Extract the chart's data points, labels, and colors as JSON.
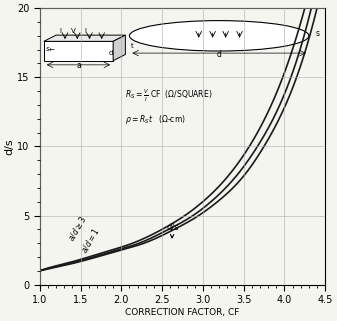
{
  "title": "",
  "xlabel": "CORRECTION FACTOR, CF",
  "ylabel": "d/s",
  "xlim": [
    1.0,
    4.5
  ],
  "ylim": [
    0,
    20
  ],
  "xticks": [
    1.0,
    1.5,
    2.0,
    2.5,
    3.0,
    3.5,
    4.0,
    4.5
  ],
  "yticks": [
    0,
    5,
    10,
    15,
    20
  ],
  "background_color": "#f5f5f0",
  "grid_color": "#aaaaaa",
  "line_color": "#1a1a1a",
  "formula_line1": "R_S = \\frac{V}{I} CF   (\\Omega/SQUARE)",
  "formula_line2": "\\rho = R_S t   (\\Omega\\text{-cm})",
  "label_ad3": "a/d \\geq 3",
  "label_ad1": "a/d=1",
  "label_ds": "d/s"
}
